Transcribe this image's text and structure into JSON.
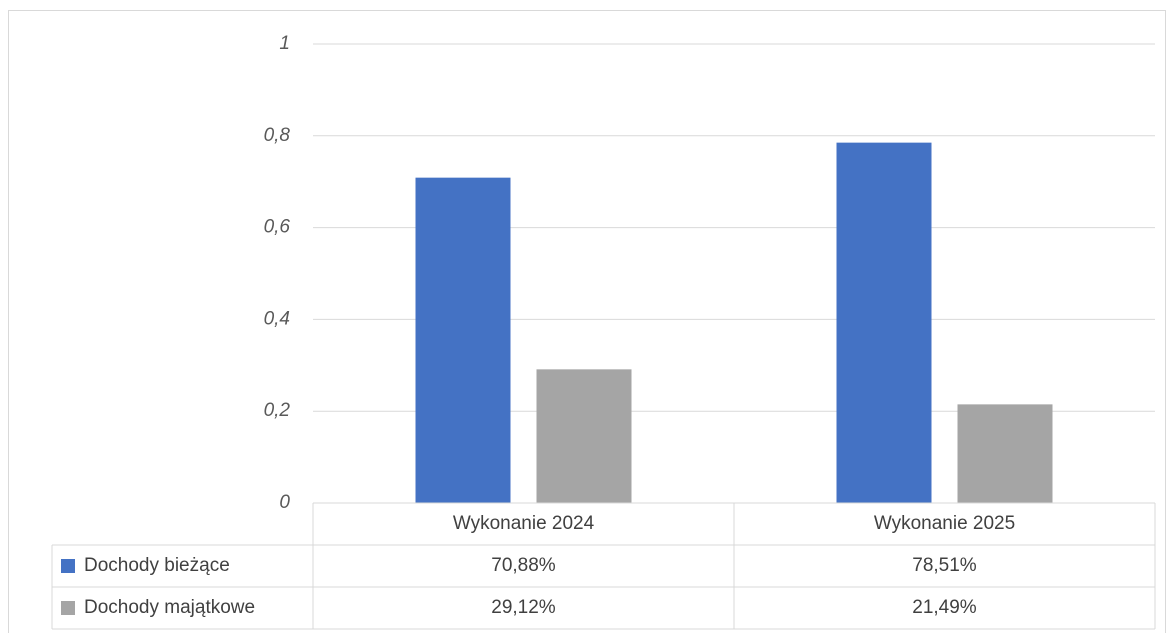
{
  "chart_data": {
    "type": "bar",
    "categories": [
      "Wykonanie 2024",
      "Wykonanie 2025"
    ],
    "series": [
      {
        "name": "Dochody bieżące",
        "color": "#4472c4",
        "values": [
          0.7088,
          0.7851
        ],
        "value_labels": [
          "70,88%",
          "78,51%"
        ]
      },
      {
        "name": "Dochody majątkowe",
        "color": "#a5a5a5",
        "values": [
          0.2912,
          0.2149
        ],
        "value_labels": [
          "29,12%",
          "21,49%"
        ]
      }
    ],
    "ylim": [
      0,
      1
    ],
    "yticks": [
      0,
      {
        "value": 0.2,
        "label": "0,2"
      },
      {
        "value": 0.4,
        "label": "0,4"
      },
      {
        "value": 0.6,
        "label": "0,6"
      },
      {
        "value": 0.8,
        "label": "0,8"
      },
      1
    ],
    "grid": true,
    "data_table": true
  }
}
